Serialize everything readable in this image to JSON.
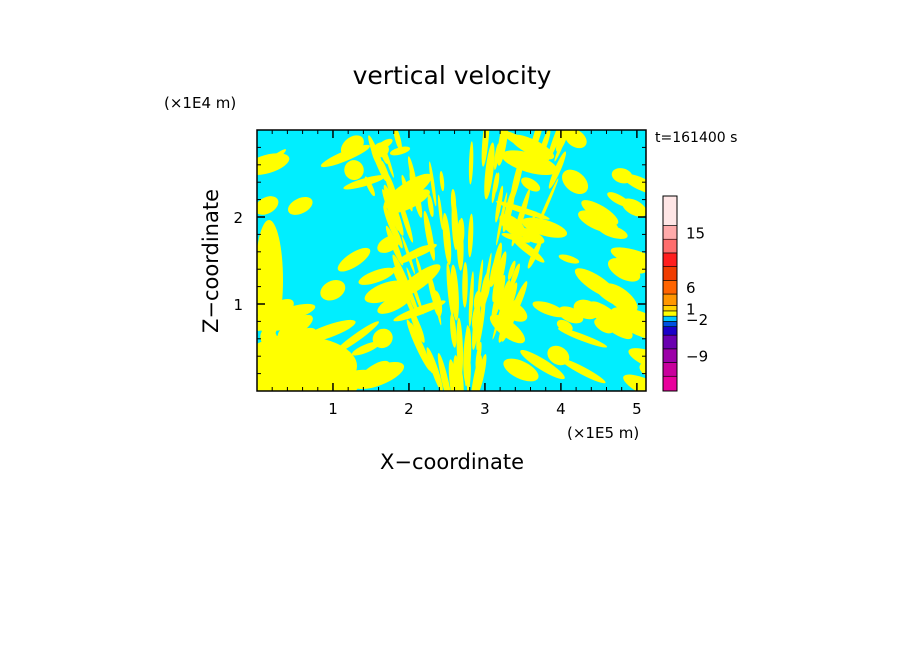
{
  "chart_data": {
    "type": "heatmap",
    "title": "vertical velocity",
    "xlabel": "X−coordinate",
    "ylabel": "Z−coordinate",
    "x_unit_label": "(×1E5 m)",
    "y_unit_label": "(×1E4 m)",
    "time_label": "t=161400 s",
    "xlim": [
      0,
      5.12
    ],
    "ylim": [
      0,
      3.0
    ],
    "x_ticks": [
      1,
      2,
      3,
      4,
      5
    ],
    "y_ticks": [
      1,
      2
    ],
    "x_tick_labels": [
      "1",
      "2",
      "3",
      "4",
      "5"
    ],
    "y_tick_labels": [
      "1",
      "2"
    ],
    "field_colors": {
      "positive": "#ffff00",
      "negative": "#00eeff"
    },
    "colorbar": {
      "levels_bottom_to_top": [
        {
          "color": "#e8009c"
        },
        {
          "color": "#c8009c"
        },
        {
          "color": "#9c00a8"
        },
        {
          "color": "#6a00b0"
        },
        {
          "color": "#1a00c8"
        },
        {
          "color": "#0050e0"
        },
        {
          "color": "#00c8ff"
        },
        {
          "color": "#ffff00"
        },
        {
          "color": "#ffd200"
        },
        {
          "color": "#ff9600"
        },
        {
          "color": "#ff6400"
        },
        {
          "color": "#f03c00"
        },
        {
          "color": "#ff1e1e"
        },
        {
          "color": "#ff6e6e"
        },
        {
          "color": "#ffaaaa"
        },
        {
          "color": "#ffe6e6"
        }
      ],
      "labels": [
        {
          "text": "15",
          "at_level": 14
        },
        {
          "text": "6",
          "at_level": 10
        },
        {
          "text": "1",
          "at_level": 8
        },
        {
          "text": "−2",
          "at_level": 6
        },
        {
          "text": "−9",
          "at_level": 2
        }
      ]
    }
  }
}
